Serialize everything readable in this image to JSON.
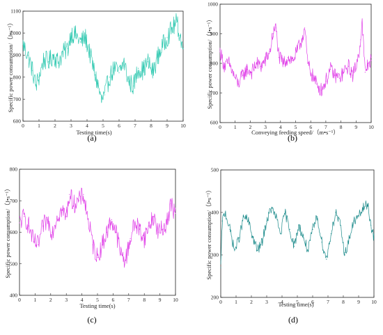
{
  "chart_data": [
    {
      "panel": "(a)",
      "type": "line",
      "xlabel": "Testing time(s)",
      "ylabel": "Specific power consumption/（J•s⁻¹）",
      "xlim": [
        0,
        10
      ],
      "ylim": [
        600,
        1100
      ],
      "xticks": [
        0,
        1,
        2,
        3,
        4,
        5,
        6,
        7,
        8,
        9,
        10
      ],
      "yticks": [
        600,
        700,
        800,
        900,
        1000,
        1100
      ],
      "color": "#2ec8b0",
      "grid": false,
      "noise": 45,
      "series": [
        {
          "x": [
            0,
            0.3,
            0.6,
            0.8,
            1.0,
            1.3,
            1.6,
            1.9,
            2.2,
            2.5,
            2.8,
            3.0,
            3.3,
            3.6,
            3.9,
            4.2,
            4.5,
            4.7,
            4.9,
            5.1,
            5.4,
            5.7,
            6.0,
            6.3,
            6.6,
            6.9,
            7.2,
            7.5,
            7.8,
            8.1,
            8.4,
            8.7,
            9.0,
            9.3,
            9.6,
            9.8,
            10.0
          ],
          "values": [
            950,
            900,
            830,
            760,
            800,
            880,
            870,
            900,
            870,
            910,
            930,
            1000,
            990,
            960,
            980,
            900,
            810,
            760,
            690,
            720,
            800,
            840,
            820,
            870,
            780,
            760,
            840,
            830,
            870,
            820,
            890,
            940,
            980,
            1020,
            1050,
            990,
            930
          ]
        }
      ]
    },
    {
      "panel": "(b)",
      "type": "line",
      "xlabel": "Conveying feeding speed/（m•s⁻¹）",
      "ylabel": "Specific power consumption/（J•s⁻¹）",
      "xlim": [
        0,
        10
      ],
      "ylim": [
        600,
        1000
      ],
      "xticks": [
        0,
        1,
        2,
        3,
        4,
        5,
        6,
        7,
        8,
        9,
        10
      ],
      "yticks": [
        600,
        700,
        800,
        900,
        1000
      ],
      "color": "#e040e8",
      "grid": false,
      "noise": 25,
      "series": [
        {
          "x": [
            0,
            0.3,
            0.6,
            0.9,
            1.2,
            1.5,
            1.8,
            2.1,
            2.4,
            2.7,
            3.0,
            3.3,
            3.5,
            3.7,
            3.9,
            4.2,
            4.5,
            4.8,
            5.1,
            5.4,
            5.6,
            5.8,
            6.1,
            6.4,
            6.7,
            7.0,
            7.3,
            7.6,
            7.9,
            8.2,
            8.5,
            8.8,
            9.1,
            9.3,
            9.4,
            9.6,
            9.8,
            10.0
          ],
          "values": [
            840,
            790,
            800,
            760,
            730,
            760,
            780,
            770,
            800,
            790,
            810,
            840,
            900,
            920,
            820,
            800,
            820,
            810,
            840,
            880,
            920,
            800,
            760,
            730,
            710,
            740,
            780,
            760,
            750,
            770,
            790,
            760,
            810,
            880,
            940,
            770,
            800,
            810
          ]
        }
      ]
    },
    {
      "panel": "(c)",
      "type": "line",
      "xlabel": "Testing time(s)",
      "ylabel": "Specific power consumption/（J•s⁻¹）",
      "xlim": [
        0,
        10
      ],
      "ylim": [
        400,
        800
      ],
      "xticks": [
        0,
        1,
        2,
        3,
        4,
        5,
        6,
        7,
        8,
        9,
        10
      ],
      "yticks": [
        400,
        500,
        600,
        700,
        800
      ],
      "color": "#e040e8",
      "grid": false,
      "noise": 30,
      "series": [
        {
          "x": [
            0,
            0.3,
            0.6,
            0.9,
            1.2,
            1.5,
            1.8,
            2.1,
            2.4,
            2.7,
            3.0,
            3.2,
            3.5,
            3.8,
            4.1,
            4.4,
            4.7,
            5.0,
            5.3,
            5.6,
            5.9,
            6.2,
            6.5,
            6.8,
            7.1,
            7.4,
            7.7,
            8.0,
            8.3,
            8.6,
            8.9,
            9.2,
            9.5,
            9.7,
            10.0
          ],
          "values": [
            630,
            650,
            620,
            570,
            560,
            620,
            640,
            600,
            650,
            670,
            650,
            720,
            690,
            700,
            720,
            640,
            560,
            520,
            560,
            600,
            640,
            600,
            530,
            510,
            580,
            630,
            610,
            580,
            620,
            650,
            600,
            610,
            640,
            690,
            660
          ]
        }
      ]
    },
    {
      "panel": "(d)",
      "type": "line",
      "xlabel": "Testing time(s)",
      "ylabel": "Specific power consumption/（J•s⁻¹）",
      "xlim": [
        0,
        10
      ],
      "ylim": [
        200,
        500
      ],
      "xticks": [
        0,
        1,
        2,
        3,
        4,
        5,
        6,
        7,
        8,
        9,
        10
      ],
      "yticks": [
        200,
        300,
        400,
        500
      ],
      "color": "#1a8a8a",
      "grid": false,
      "noise": 12,
      "series": [
        {
          "x": [
            0,
            0.1,
            0.3,
            0.6,
            0.9,
            1.2,
            1.5,
            1.8,
            2.1,
            2.4,
            2.7,
            3.0,
            3.3,
            3.6,
            3.9,
            4.2,
            4.5,
            4.8,
            5.1,
            5.4,
            5.7,
            6.0,
            6.3,
            6.6,
            6.9,
            7.2,
            7.5,
            7.8,
            8.1,
            8.4,
            8.7,
            9.0,
            9.3,
            9.6,
            9.8,
            10.0
          ],
          "values": [
            270,
            380,
            400,
            360,
            310,
            340,
            390,
            380,
            340,
            310,
            330,
            380,
            410,
            390,
            350,
            400,
            360,
            320,
            370,
            340,
            310,
            360,
            390,
            330,
            290,
            350,
            400,
            370,
            300,
            340,
            380,
            390,
            410,
            420,
            370,
            340
          ]
        }
      ]
    }
  ]
}
